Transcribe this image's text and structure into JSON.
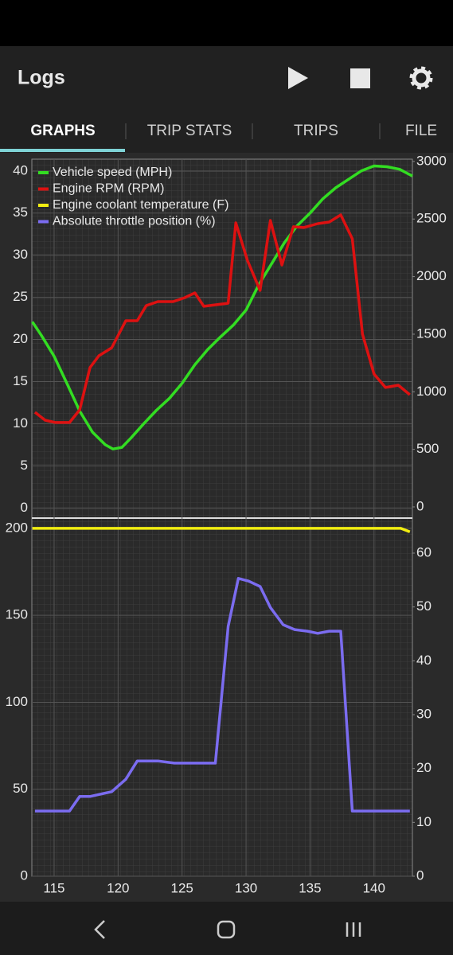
{
  "header": {
    "title": "Logs"
  },
  "tabs": [
    "GRAPHS",
    "TRIP STATS",
    "TRIPS",
    "FILE"
  ],
  "chart_data": [
    {
      "type": "line",
      "grid": true,
      "xlim": [
        113.26,
        143
      ],
      "ylim": [
        -1.2,
        41.4
      ],
      "yticks": [
        0,
        5,
        10,
        15,
        20,
        25,
        30,
        35,
        40
      ],
      "y2lim": [
        -97,
        3020
      ],
      "y2ticks": [
        0,
        500,
        1000,
        1500,
        2000,
        2500,
        3000
      ],
      "series": [
        {
          "name": "Vehicle speed (MPH)",
          "color": "#33dd22",
          "x": [
            113.3,
            114,
            115,
            116,
            117,
            118,
            119,
            119.6,
            120.3,
            121,
            122,
            123,
            124,
            125,
            126,
            127,
            128,
            129,
            130,
            131,
            132,
            133,
            134,
            135,
            136,
            137,
            138,
            139,
            140,
            141,
            142,
            143
          ],
          "values": [
            22.1,
            20.5,
            18,
            14.8,
            11.5,
            9,
            7.5,
            7,
            7.2,
            8.3,
            10,
            11.6,
            13,
            14.8,
            17,
            18.8,
            20.3,
            21.7,
            23.5,
            26.5,
            29,
            31.5,
            33.5,
            35,
            36.7,
            38,
            39,
            40,
            40.6,
            40.5,
            40.2,
            39.4
          ]
        },
        {
          "name": "Engine RPM (RPM)",
          "color": "#dd1111",
          "axis": "y2",
          "x": [
            113.5,
            114.3,
            115.1,
            116.2,
            117.0,
            117.8,
            118.5,
            119.5,
            120.6,
            121.5,
            122.2,
            123.1,
            124.3,
            125.2,
            126.0,
            126.7,
            128.6,
            129.2,
            130.1,
            131.1,
            131.9,
            132.8,
            133.7,
            134.5,
            135.6,
            136.5,
            137.4,
            138.3,
            139.1,
            140.0,
            140.9,
            141.9,
            142.8
          ],
          "values": [
            822,
            753,
            733,
            733,
            843,
            1210,
            1313,
            1382,
            1617,
            1617,
            1748,
            1783,
            1783,
            1817,
            1859,
            1742,
            1769,
            2467,
            2142,
            1880,
            2488,
            2101,
            2433,
            2426,
            2460,
            2474,
            2536,
            2329,
            1500,
            1154,
            1037,
            1057,
            974
          ]
        }
      ]
    },
    {
      "type": "line",
      "grid": true,
      "xlim": [
        113.26,
        143
      ],
      "xticks": [
        115,
        120,
        125,
        130,
        135,
        140
      ],
      "ylim": [
        0,
        205.9
      ],
      "yticks": [
        0,
        50,
        100,
        150,
        200
      ],
      "y2lim": [
        0,
        66.5
      ],
      "y2ticks": [
        0,
        10,
        20,
        30,
        40,
        50,
        60
      ],
      "series": [
        {
          "name": "Engine coolant temperature (F)",
          "color": "#f2ee11",
          "x": [
            113.3,
            142.1,
            142.8
          ],
          "values": [
            200,
            200,
            198
          ]
        },
        {
          "name": "Absolute throttle position (%)",
          "color": "#7b6cf0",
          "axis": "y2",
          "x": [
            113.5,
            116.2,
            117.0,
            117.8,
            119.5,
            120.6,
            121.5,
            123.1,
            124.4,
            127.6,
            128.6,
            129.4,
            130.2,
            131.1,
            131.9,
            132.9,
            133.8,
            134.8,
            135.6,
            136.5,
            137.4,
            138.3,
            142.8
          ],
          "values": [
            12.1,
            12.1,
            14.8,
            14.8,
            15.7,
            18,
            21.4,
            21.4,
            21,
            21,
            46.4,
            55.3,
            54.8,
            53.8,
            49.9,
            46.7,
            45.8,
            45.5,
            45.1,
            45.5,
            45.5,
            12.1,
            12.1
          ]
        }
      ]
    }
  ]
}
